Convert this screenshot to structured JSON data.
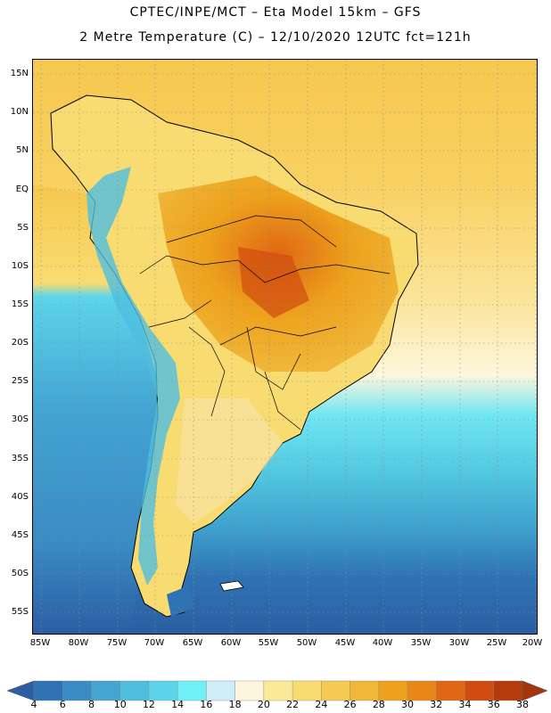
{
  "title_line1": "CPTEC/INPE/MCT –  Eta Model 15km – GFS",
  "title_line2": "2 Metre Temperature (C) – 12/10/2020 12UTC fct=121h",
  "lat_labels": [
    "15N",
    "10N",
    "5N",
    "EQ",
    "5S",
    "10S",
    "15S",
    "20S",
    "25S",
    "30S",
    "35S",
    "40S",
    "45S",
    "50S",
    "55S"
  ],
  "lon_labels": [
    "85W",
    "80W",
    "75W",
    "70W",
    "65W",
    "60W",
    "55W",
    "50W",
    "45W",
    "40W",
    "35W",
    "30W",
    "25W",
    "20W"
  ],
  "colorbar": {
    "labels": [
      "4",
      "6",
      "8",
      "10",
      "12",
      "14",
      "16",
      "18",
      "20",
      "22",
      "24",
      "26",
      "28",
      "30",
      "32",
      "34",
      "36",
      "38"
    ],
    "colors": [
      "#2b5ea3",
      "#2f73b4",
      "#3a8bc4",
      "#44a4d2",
      "#4fbede",
      "#5cd5ea",
      "#6ff0f6",
      "#cfeef7",
      "#fdf6dc",
      "#fbe99a",
      "#f8dc72",
      "#f4ca52",
      "#f0b739",
      "#eda11c",
      "#e8861a",
      "#df6713",
      "#d04b10",
      "#b53a0e",
      "#a4350c"
    ]
  }
}
